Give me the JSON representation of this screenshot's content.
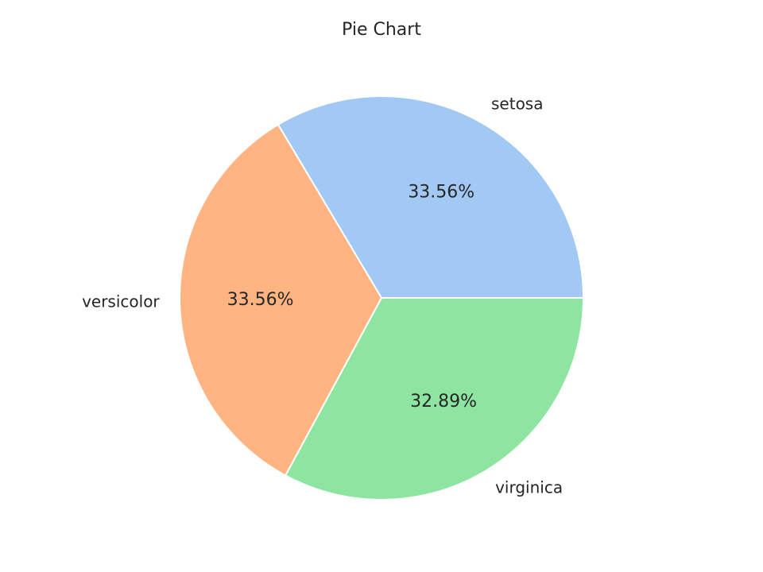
{
  "chart_data": {
    "type": "pie",
    "title": "Pie Chart",
    "categories": [
      "setosa",
      "versicolor",
      "virginica"
    ],
    "values": [
      33.56,
      33.56,
      32.89
    ],
    "value_labels": [
      "33.56%",
      "33.56%",
      "32.89%"
    ],
    "colors": [
      "#a1c9f4",
      "#ffb482",
      "#8de5a1"
    ],
    "start_angle_deg": 0,
    "direction": "counterclockwise"
  }
}
